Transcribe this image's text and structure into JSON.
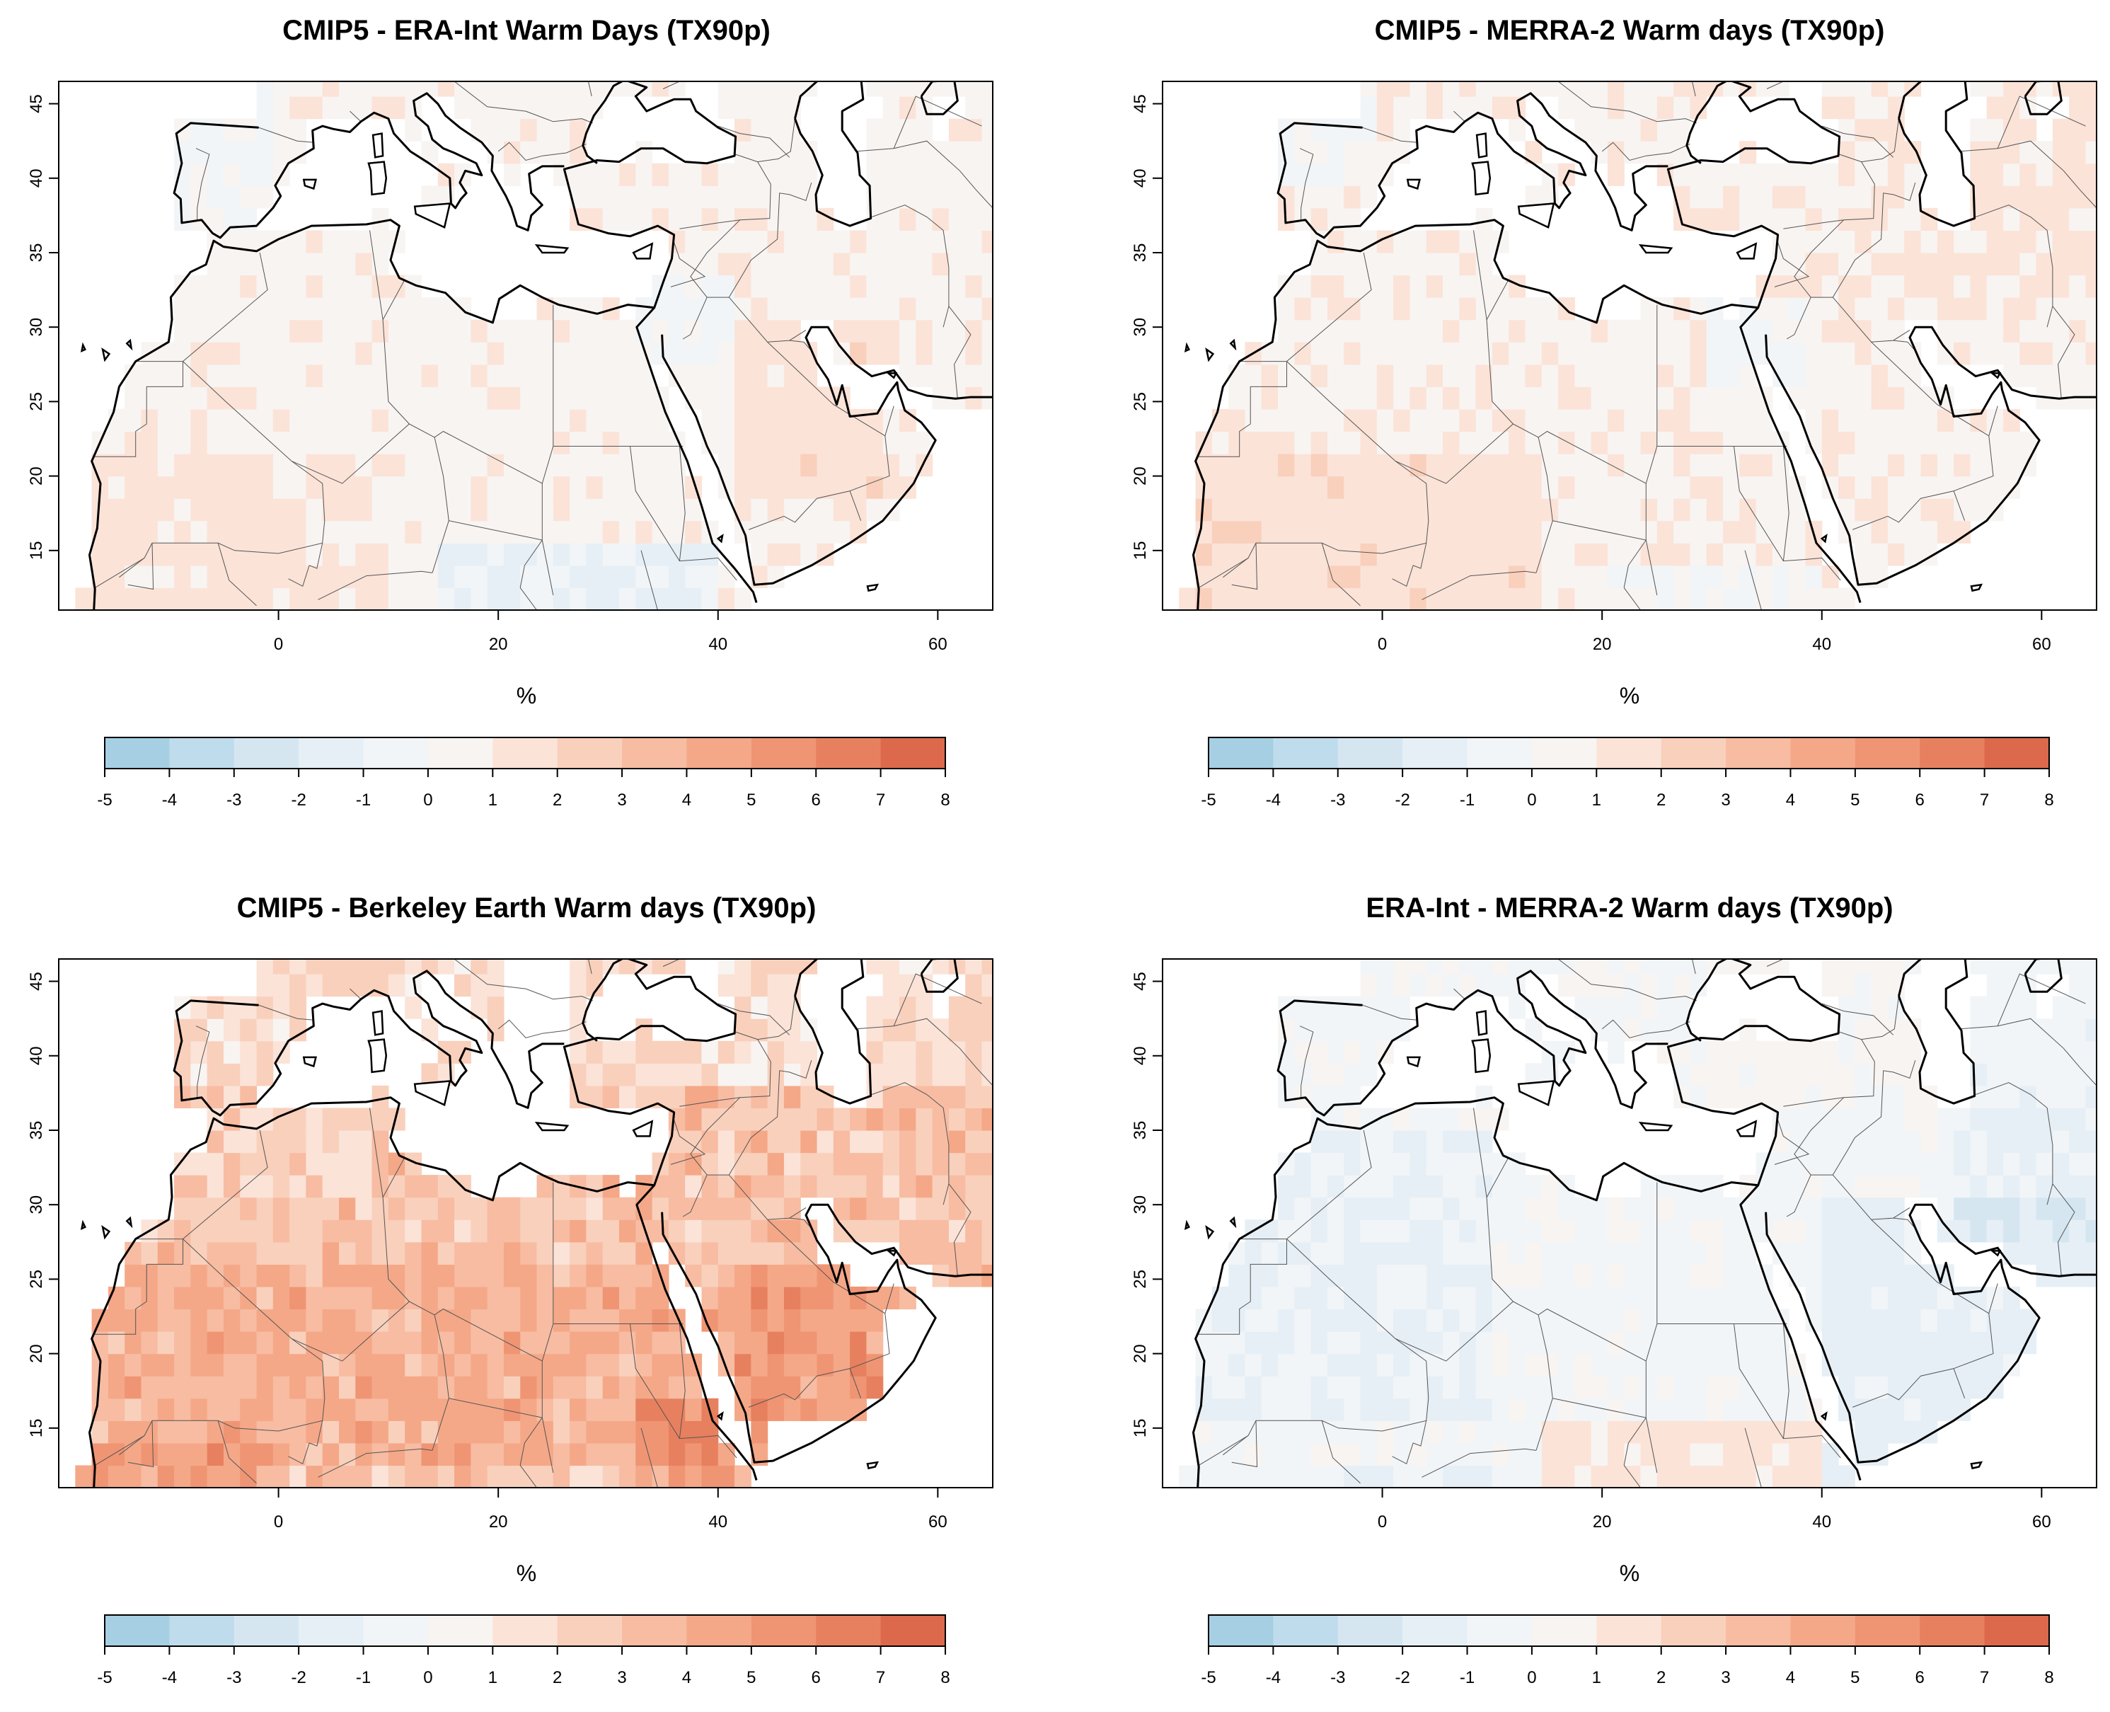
{
  "figure": {
    "panels": [
      {
        "title": "CMIP5 - ERA-Int   Warm Days (TX90p)",
        "xlabel": "%",
        "field_bias": 0.6,
        "field_amp": 1.0,
        "shift_region": "sahel_blue"
      },
      {
        "title": "CMIP5 - MERRA-2   Warm days (TX90p)",
        "xlabel": "%",
        "field_bias": 0.8,
        "field_amp": 0.9,
        "shift_region": "sahara_warm"
      },
      {
        "title": "CMIP5 - Berkeley Earth   Warm days (TX90p)",
        "xlabel": "%",
        "field_bias": 3.2,
        "field_amp": 2.0,
        "shift_region": "strong_warm"
      },
      {
        "title": "ERA-Int - MERRA-2   Warm days (TX90p)",
        "xlabel": "%",
        "field_bias": -0.3,
        "field_amp": 0.9,
        "shift_region": "mixed"
      }
    ],
    "x_ticks": [
      "0",
      "20",
      "40",
      "60"
    ],
    "y_ticks": [
      "15",
      "20",
      "25",
      "30",
      "35",
      "40",
      "45"
    ],
    "colorbar": {
      "ticks": [
        "-5",
        "-4",
        "-3",
        "-2",
        "-1",
        "0",
        "1",
        "2",
        "3",
        "4",
        "5",
        "6",
        "7",
        "8"
      ],
      "colors": [
        "#a6cfe3",
        "#bfdcec",
        "#d5e6f1",
        "#e6eff6",
        "#f1f5f8",
        "#f8f4f2",
        "#fbe3d8",
        "#f9d0bc",
        "#f7bca2",
        "#f4a888",
        "#ef9574",
        "#e7805f",
        "#dc694c"
      ]
    }
  },
  "chart_data": {
    "type": "heatmap",
    "region": "Middle East and North Africa",
    "lon_range": [
      -20,
      65
    ],
    "lat_range": [
      11,
      46.5
    ],
    "x_ticks": [
      0,
      20,
      40,
      60
    ],
    "y_ticks": [
      15,
      20,
      25,
      30,
      35,
      40,
      45
    ],
    "colorbar_range": [
      -5,
      8
    ],
    "colorbar_step": 1,
    "unit": "%",
    "panels": [
      "CMIP5 - ERA-Int   Warm Days (TX90p)",
      "CMIP5 - MERRA-2   Warm days (TX90p)",
      "CMIP5 - Berkeley Earth   Warm days (TX90p)",
      "ERA-Int - MERRA-2   Warm days (TX90p)"
    ]
  }
}
